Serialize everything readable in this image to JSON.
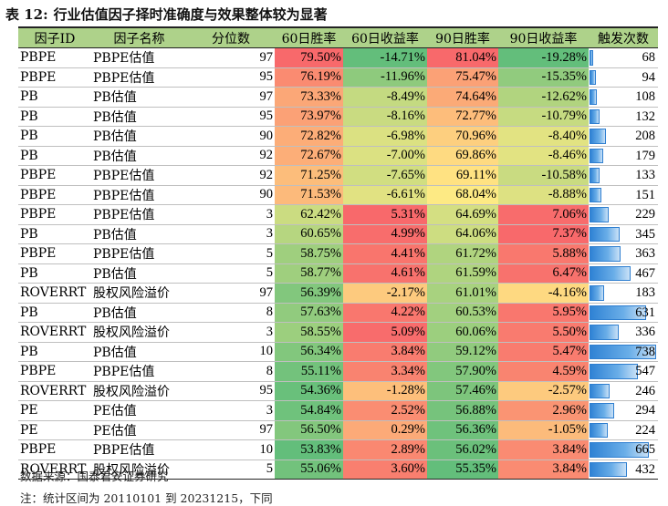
{
  "title": {
    "label": "表 12:",
    "text": "行业估值因子择时准确度与效果整体较为显著"
  },
  "columns": [
    "因子ID",
    "因子名称",
    "分位数",
    "60日胜率",
    "60日收益率",
    "90日胜率",
    "90日收益率",
    "触发次数"
  ],
  "rows": [
    {
      "id": "PBPE",
      "name": "PBPE估值",
      "pct": "97",
      "w60": "79.50%",
      "r60": "-14.71%",
      "w90": "81.04%",
      "r90": "-19.28%",
      "count": "68"
    },
    {
      "id": "PBPE",
      "name": "PBPE估值",
      "pct": "95",
      "w60": "76.19%",
      "r60": "-11.96%",
      "w90": "75.47%",
      "r90": "-15.35%",
      "count": "94"
    },
    {
      "id": "PB",
      "name": "PB估值",
      "pct": "97",
      "w60": "73.33%",
      "r60": "-8.49%",
      "w90": "74.64%",
      "r90": "-12.62%",
      "count": "108"
    },
    {
      "id": "PB",
      "name": "PB估值",
      "pct": "95",
      "w60": "73.97%",
      "r60": "-8.16%",
      "w90": "72.77%",
      "r90": "-10.79%",
      "count": "132"
    },
    {
      "id": "PB",
      "name": "PB估值",
      "pct": "90",
      "w60": "72.82%",
      "r60": "-6.98%",
      "w90": "70.96%",
      "r90": "-8.40%",
      "count": "208"
    },
    {
      "id": "PB",
      "name": "PB估值",
      "pct": "92",
      "w60": "72.67%",
      "r60": "-7.00%",
      "w90": "69.86%",
      "r90": "-8.46%",
      "count": "179"
    },
    {
      "id": "PBPE",
      "name": "PBPE估值",
      "pct": "92",
      "w60": "71.25%",
      "r60": "-7.65%",
      "w90": "69.11%",
      "r90": "-10.58%",
      "count": "133"
    },
    {
      "id": "PBPE",
      "name": "PBPE估值",
      "pct": "90",
      "w60": "71.53%",
      "r60": "-6.61%",
      "w90": "68.04%",
      "r90": "-8.88%",
      "count": "151"
    },
    {
      "id": "PBPE",
      "name": "PBPE估值",
      "pct": "3",
      "w60": "62.42%",
      "r60": "5.31%",
      "w90": "64.69%",
      "r90": "7.06%",
      "count": "229"
    },
    {
      "id": "PB",
      "name": "PB估值",
      "pct": "3",
      "w60": "60.65%",
      "r60": "4.99%",
      "w90": "64.06%",
      "r90": "7.37%",
      "count": "345"
    },
    {
      "id": "PBPE",
      "name": "PBPE估值",
      "pct": "5",
      "w60": "58.75%",
      "r60": "4.41%",
      "w90": "61.72%",
      "r90": "5.88%",
      "count": "363"
    },
    {
      "id": "PB",
      "name": "PB估值",
      "pct": "5",
      "w60": "58.77%",
      "r60": "4.61%",
      "w90": "61.59%",
      "r90": "6.47%",
      "count": "467"
    },
    {
      "id": "ROVERRT",
      "name": "股权风险溢价",
      "pct": "97",
      "w60": "56.39%",
      "r60": "-2.17%",
      "w90": "61.01%",
      "r90": "-4.16%",
      "count": "183"
    },
    {
      "id": "PB",
      "name": "PB估值",
      "pct": "8",
      "w60": "57.63%",
      "r60": "4.22%",
      "w90": "60.53%",
      "r90": "5.95%",
      "count": "631"
    },
    {
      "id": "ROVERRT",
      "name": "股权风险溢价",
      "pct": "3",
      "w60": "58.55%",
      "r60": "5.09%",
      "w90": "60.06%",
      "r90": "5.50%",
      "count": "336"
    },
    {
      "id": "PB",
      "name": "PB估值",
      "pct": "10",
      "w60": "56.34%",
      "r60": "3.84%",
      "w90": "59.12%",
      "r90": "5.47%",
      "count": "738"
    },
    {
      "id": "PBPE",
      "name": "PBPE估值",
      "pct": "8",
      "w60": "55.11%",
      "r60": "3.34%",
      "w90": "57.90%",
      "r90": "4.59%",
      "count": "547"
    },
    {
      "id": "ROVERRT",
      "name": "股权风险溢价",
      "pct": "95",
      "w60": "54.36%",
      "r60": "-1.28%",
      "w90": "57.46%",
      "r90": "-2.57%",
      "count": "246"
    },
    {
      "id": "PE",
      "name": "PE估值",
      "pct": "3",
      "w60": "54.84%",
      "r60": "2.52%",
      "w90": "56.88%",
      "r90": "2.96%",
      "count": "294"
    },
    {
      "id": "PE",
      "name": "PE估值",
      "pct": "97",
      "w60": "56.50%",
      "r60": "0.29%",
      "w90": "56.36%",
      "r90": "-1.05%",
      "count": "224"
    },
    {
      "id": "PBPE",
      "name": "PBPE估值",
      "pct": "10",
      "w60": "53.83%",
      "r60": "2.89%",
      "w90": "56.02%",
      "r90": "3.84%",
      "count": "665"
    },
    {
      "id": "ROVERRT",
      "name": "股权风险溢价",
      "pct": "5",
      "w60": "55.06%",
      "r60": "3.60%",
      "w90": "55.35%",
      "r90": "3.84%",
      "count": "432"
    }
  ],
  "colors": {
    "header_bg": "#aed28a",
    "scale_low": "#f8696b",
    "scale_mid": "#ffeb84",
    "scale_high": "#63be7b",
    "bar": "#2f82d4"
  },
  "footer": {
    "source": "数据来源：国泰君安证券研究",
    "note": "注：统计区间为 20110101 到 20231215，下同"
  }
}
